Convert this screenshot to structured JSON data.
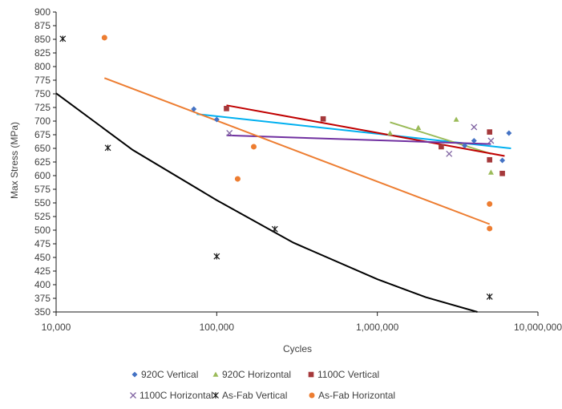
{
  "chart_data": {
    "type": "scatter",
    "title": "",
    "xlabel": "Cycles",
    "ylabel": "Max Stress (MPa)",
    "xscale": "log",
    "xlim": [
      10000,
      10000000
    ],
    "ylim": [
      350,
      900
    ],
    "grid": false,
    "legend_position": "bottom",
    "x_tick_labels": [
      "10,000",
      "100,000",
      "1,000,000",
      "10,000,000"
    ],
    "x_tick_values": [
      10000,
      100000,
      1000000,
      10000000
    ],
    "y_tick_labels": [
      "350",
      "375",
      "400",
      "425",
      "450",
      "475",
      "500",
      "525",
      "550",
      "575",
      "600",
      "625",
      "650",
      "675",
      "700",
      "725",
      "750",
      "775",
      "800",
      "825",
      "850",
      "875",
      "900"
    ],
    "series": [
      {
        "name": "920C Vertical",
        "marker": "diamond",
        "color": "#4472C4",
        "trendline_color": "#00B0F0",
        "points": [
          [
            72000,
            722
          ],
          [
            100000,
            703
          ],
          [
            3500000,
            655
          ],
          [
            4000000,
            664
          ],
          [
            6000000,
            628
          ],
          [
            6600000,
            678
          ]
        ],
        "trendline": [
          [
            75000,
            713
          ],
          [
            6800000,
            650
          ]
        ]
      },
      {
        "name": "920C Horizontal",
        "marker": "triangle",
        "color": "#9BBB59",
        "trendline_color": "#9BBB59",
        "points": [
          [
            1200000,
            678
          ],
          [
            1800000,
            688
          ],
          [
            3100000,
            703
          ],
          [
            5100000,
            606
          ]
        ],
        "trendline": [
          [
            1200000,
            698
          ],
          [
            5100000,
            640
          ]
        ]
      },
      {
        "name": "1100C Vertical",
        "marker": "square",
        "color": "#A5393B",
        "trendline_color": "#C00000",
        "points": [
          [
            115000,
            723
          ],
          [
            460000,
            704
          ],
          [
            2500000,
            653
          ],
          [
            5000000,
            680
          ],
          [
            5000000,
            629
          ],
          [
            6000000,
            604
          ]
        ],
        "trendline": [
          [
            115000,
            729
          ],
          [
            6200000,
            636
          ]
        ]
      },
      {
        "name": "1100C Horizontal",
        "marker": "x",
        "color": "#8064A2",
        "trendline_color": "#7030A0",
        "points": [
          [
            120000,
            678
          ],
          [
            2800000,
            640
          ],
          [
            4000000,
            689
          ],
          [
            5100000,
            664
          ]
        ],
        "trendline": [
          [
            115000,
            674
          ],
          [
            5100000,
            658
          ]
        ]
      },
      {
        "name": "As-Fab Vertical",
        "marker": "asterisk",
        "color": "#1a1a1a",
        "trendline_color": "#000000",
        "points": [
          [
            11000,
            851
          ],
          [
            21000,
            651
          ],
          [
            100000,
            452
          ],
          [
            230000,
            502
          ],
          [
            5000000,
            378
          ]
        ],
        "trendline": [
          [
            10000,
            751
          ],
          [
            30000,
            647
          ],
          [
            100000,
            555
          ],
          [
            300000,
            477
          ],
          [
            1000000,
            410
          ],
          [
            2000000,
            377
          ],
          [
            4200000,
            350
          ]
        ]
      },
      {
        "name": "As-Fab Horizontal",
        "marker": "circle",
        "color": "#ED7D31",
        "trendline_color": "#ED7D31",
        "points": [
          [
            20000,
            853
          ],
          [
            135000,
            594
          ],
          [
            170000,
            653
          ],
          [
            5000000,
            548
          ],
          [
            5000000,
            503
          ]
        ],
        "trendline": [
          [
            20000,
            779
          ],
          [
            5000000,
            511
          ]
        ]
      }
    ]
  }
}
